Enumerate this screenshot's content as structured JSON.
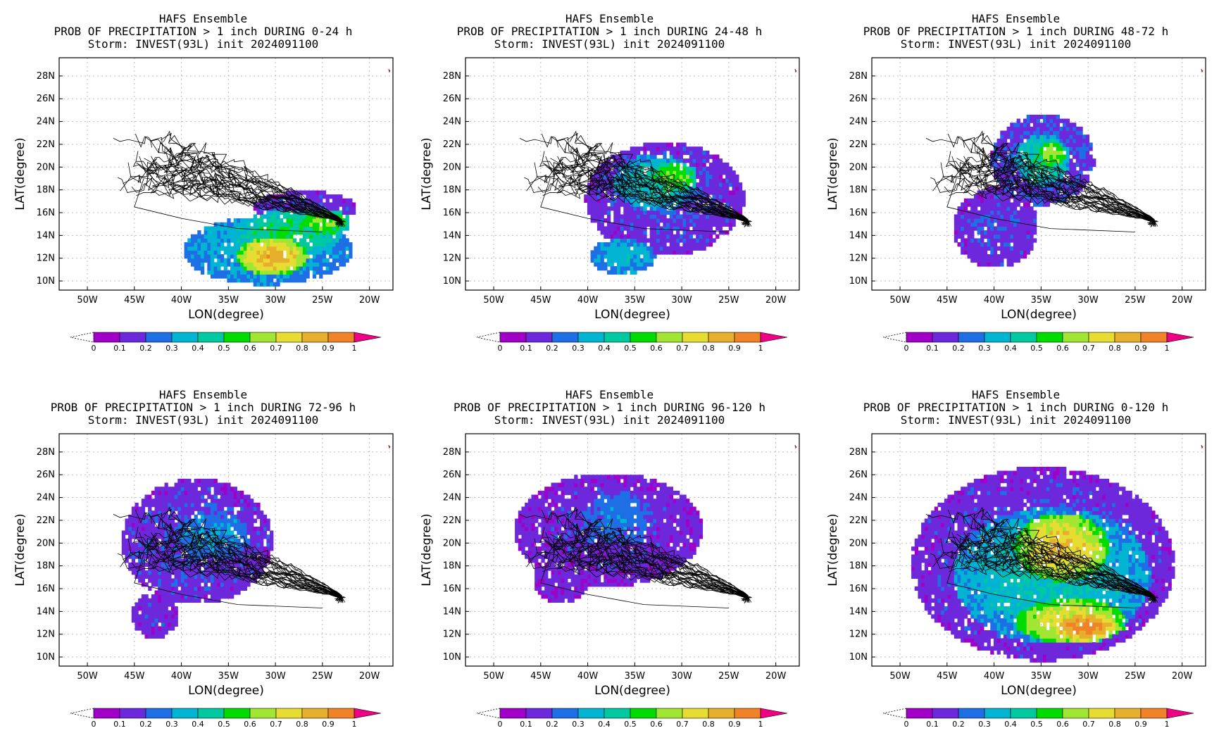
{
  "figure": {
    "rows": 2,
    "cols": 3
  },
  "chart_data": [
    {
      "type": "heatmap",
      "title": "HAFS Ensemble",
      "subtitle": "PROB OF PRECIPITATION > 1 inch DURING  0-24 h",
      "storm_line": "Storm: INVEST(93L) init 2024091100",
      "xlabel": "LON(degree)",
      "ylabel": "LAT(degree)",
      "xlim": [
        -53,
        -17.5
      ],
      "ylim": [
        9.2,
        29.6
      ],
      "xticks": [
        "50W",
        "45W",
        "40W",
        "35W",
        "30W",
        "25W",
        "20W"
      ],
      "yticks": [
        "10N",
        "12N",
        "14N",
        "16N",
        "18N",
        "20N",
        "22N",
        "24N",
        "26N",
        "28N"
      ],
      "grid": true,
      "colorbar_levels": [
        "0",
        "0.1",
        "0.2",
        "0.3",
        "0.4",
        "0.5",
        "0.6",
        "0.7",
        "0.8",
        "0.9",
        "1"
      ],
      "blobs": [
        {
          "lon": -31,
          "lat": 12.5,
          "rx": 9,
          "ry": 3.0,
          "p": 0.3
        },
        {
          "lon": -29,
          "lat": 14.0,
          "rx": 6,
          "ry": 2.0,
          "p": 0.45
        },
        {
          "lon": -30.5,
          "lat": 12.0,
          "rx": 3.8,
          "ry": 1.7,
          "p": 0.8
        },
        {
          "lon": -25,
          "lat": 15.0,
          "rx": 2.8,
          "ry": 1.2,
          "p": 0.55
        },
        {
          "lon": -27,
          "lat": 16.3,
          "rx": 5.5,
          "ry": 1.4,
          "p": 0.12
        }
      ]
    },
    {
      "type": "heatmap",
      "title": "HAFS Ensemble",
      "subtitle": "PROB OF PRECIPITATION > 1 inch DURING 24-48 h",
      "storm_line": "Storm: INVEST(93L) init 2024091100",
      "xlabel": "LON(degree)",
      "ylabel": "LAT(degree)",
      "xlim": [
        -53,
        -17.5
      ],
      "ylim": [
        9.2,
        29.6
      ],
      "xticks": [
        "50W",
        "45W",
        "40W",
        "35W",
        "30W",
        "25W",
        "20W"
      ],
      "yticks": [
        "10N",
        "12N",
        "14N",
        "16N",
        "18N",
        "20N",
        "22N",
        "24N",
        "26N",
        "28N"
      ],
      "grid": true,
      "colorbar_levels": [
        "0",
        "0.1",
        "0.2",
        "0.3",
        "0.4",
        "0.5",
        "0.6",
        "0.7",
        "0.8",
        "0.9",
        "1"
      ],
      "blobs": [
        {
          "lon": -32,
          "lat": 17.0,
          "rx": 8.5,
          "ry": 5.0,
          "p": 0.12
        },
        {
          "lon": -33,
          "lat": 18.5,
          "rx": 4.5,
          "ry": 2.5,
          "p": 0.35
        },
        {
          "lon": -31,
          "lat": 19.0,
          "rx": 2.5,
          "ry": 1.4,
          "p": 0.55
        },
        {
          "lon": -36.5,
          "lat": 12.0,
          "rx": 3.5,
          "ry": 1.6,
          "p": 0.3
        }
      ]
    },
    {
      "type": "heatmap",
      "title": "HAFS Ensemble",
      "subtitle": "PROB OF PRECIPITATION > 1 inch DURING 48-72 h",
      "storm_line": "Storm: INVEST(93L) init 2024091100",
      "xlabel": "LON(degree)",
      "ylabel": "LAT(degree)",
      "xlim": [
        -53,
        -17.5
      ],
      "ylim": [
        9.2,
        29.6
      ],
      "xticks": [
        "50W",
        "45W",
        "40W",
        "35W",
        "30W",
        "25W",
        "20W"
      ],
      "yticks": [
        "10N",
        "12N",
        "14N",
        "16N",
        "18N",
        "20N",
        "22N",
        "24N",
        "26N",
        "28N"
      ],
      "grid": true,
      "colorbar_levels": [
        "0",
        "0.1",
        "0.2",
        "0.3",
        "0.4",
        "0.5",
        "0.6",
        "0.7",
        "0.8",
        "0.9",
        "1"
      ],
      "blobs": [
        {
          "lon": -35,
          "lat": 20.5,
          "rx": 5.5,
          "ry": 4.0,
          "p": 0.15
        },
        {
          "lon": -35,
          "lat": 20.5,
          "rx": 3.0,
          "ry": 2.3,
          "p": 0.4
        },
        {
          "lon": -34,
          "lat": 21.0,
          "rx": 1.5,
          "ry": 1.2,
          "p": 0.6
        },
        {
          "lon": -40,
          "lat": 14.5,
          "rx": 4.5,
          "ry": 3.5,
          "p": 0.12
        }
      ]
    },
    {
      "type": "heatmap",
      "title": "HAFS Ensemble",
      "subtitle": "PROB OF PRECIPITATION > 1 inch DURING 72-96 h",
      "storm_line": "Storm: INVEST(93L) init 2024091100",
      "xlabel": "LON(degree)",
      "ylabel": "LAT(degree)",
      "xlim": [
        -53,
        -17.5
      ],
      "ylim": [
        9.2,
        29.6
      ],
      "xticks": [
        "50W",
        "45W",
        "40W",
        "35W",
        "30W",
        "25W",
        "20W"
      ],
      "yticks": [
        "10N",
        "12N",
        "14N",
        "16N",
        "18N",
        "20N",
        "22N",
        "24N",
        "26N",
        "28N"
      ],
      "grid": true,
      "colorbar_levels": [
        "0",
        "0.1",
        "0.2",
        "0.3",
        "0.4",
        "0.5",
        "0.6",
        "0.7",
        "0.8",
        "0.9",
        "1"
      ],
      "blobs": [
        {
          "lon": -38.5,
          "lat": 20.0,
          "rx": 8.0,
          "ry": 5.5,
          "p": 0.12
        },
        {
          "lon": -37,
          "lat": 20.5,
          "rx": 4.0,
          "ry": 2.2,
          "p": 0.25
        },
        {
          "lon": -43,
          "lat": 13.5,
          "rx": 2.5,
          "ry": 2.0,
          "p": 0.1
        }
      ]
    },
    {
      "type": "heatmap",
      "title": "HAFS Ensemble",
      "subtitle": "PROB OF PRECIPITATION > 1 inch DURING 96-120 h",
      "storm_line": "Storm: INVEST(93L) init 2024091100",
      "xlabel": "LON(degree)",
      "ylabel": "LAT(degree)",
      "xlim": [
        -53,
        -17.5
      ],
      "ylim": [
        9.2,
        29.6
      ],
      "xticks": [
        "50W",
        "45W",
        "40W",
        "35W",
        "30W",
        "25W",
        "20W"
      ],
      "yticks": [
        "10N",
        "12N",
        "14N",
        "16N",
        "18N",
        "20N",
        "22N",
        "24N",
        "26N",
        "28N"
      ],
      "grid": true,
      "colorbar_levels": [
        "0",
        "0.1",
        "0.2",
        "0.3",
        "0.4",
        "0.5",
        "0.6",
        "0.7",
        "0.8",
        "0.9",
        "1"
      ],
      "blobs": [
        {
          "lon": -38,
          "lat": 21.0,
          "rx": 10.0,
          "ry": 5.0,
          "p": 0.1
        },
        {
          "lon": -37,
          "lat": 22.0,
          "rx": 4.0,
          "ry": 2.5,
          "p": 0.2
        },
        {
          "lon": -43,
          "lat": 17.0,
          "rx": 3.0,
          "ry": 2.5,
          "p": 0.08
        }
      ]
    },
    {
      "type": "heatmap",
      "title": "HAFS Ensemble",
      "subtitle": "PROB OF PRECIPITATION > 1 inch DURING 0-120 h",
      "storm_line": "Storm: INVEST(93L) init 2024091100",
      "xlabel": "LON(degree)",
      "ylabel": "LAT(degree)",
      "xlim": [
        -53,
        -17.5
      ],
      "ylim": [
        9.2,
        29.6
      ],
      "xticks": [
        "50W",
        "45W",
        "40W",
        "35W",
        "30W",
        "25W",
        "20W"
      ],
      "yticks": [
        "10N",
        "12N",
        "14N",
        "16N",
        "18N",
        "20N",
        "22N",
        "24N",
        "26N",
        "28N"
      ],
      "grid": true,
      "colorbar_levels": [
        "0",
        "0.1",
        "0.2",
        "0.3",
        "0.4",
        "0.5",
        "0.6",
        "0.7",
        "0.8",
        "0.9",
        "1"
      ],
      "blobs": [
        {
          "lon": -35,
          "lat": 18.0,
          "rx": 14.0,
          "ry": 8.5,
          "p": 0.12
        },
        {
          "lon": -34,
          "lat": 17.0,
          "rx": 10.5,
          "ry": 6.0,
          "p": 0.35
        },
        {
          "lon": -33,
          "lat": 19.5,
          "rx": 5.0,
          "ry": 3.0,
          "p": 0.75
        },
        {
          "lon": -32,
          "lat": 13.0,
          "rx": 6.0,
          "ry": 2.0,
          "p": 0.7
        },
        {
          "lon": -30.5,
          "lat": 12.5,
          "rx": 3.5,
          "ry": 1.3,
          "p": 0.9
        }
      ]
    }
  ],
  "colors": {
    "scale": [
      "#a000c8",
      "#6e28dc",
      "#1e6ee6",
      "#00b4d2",
      "#00c8a0",
      "#00dc00",
      "#a0e632",
      "#e6dc32",
      "#e6af2d",
      "#f08228",
      "#fa3c3c"
    ],
    "over": "#f00082",
    "tracks": "#000000",
    "grid": "#bbbbbb",
    "corner_mark": "#8b0000"
  }
}
